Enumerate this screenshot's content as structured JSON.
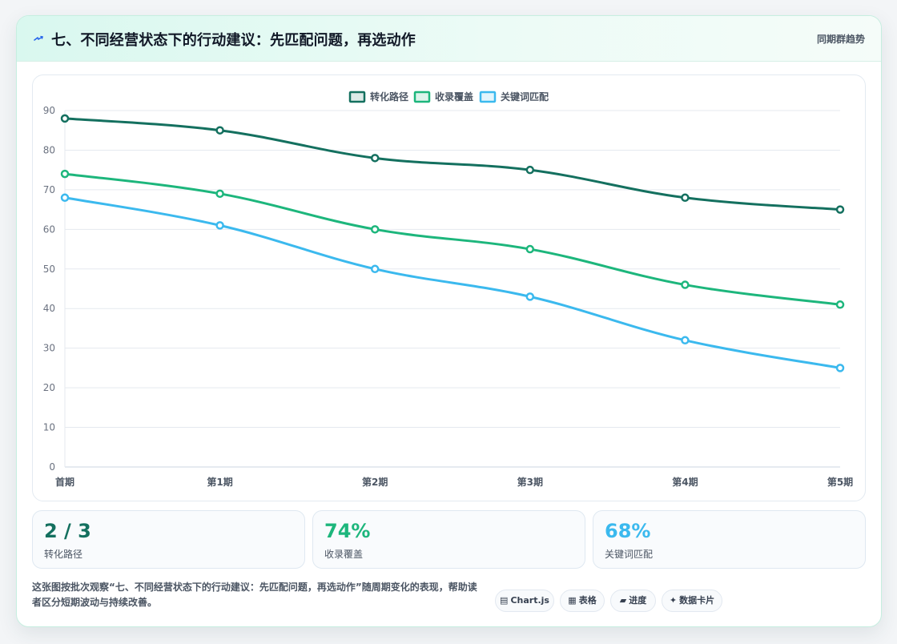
{
  "header": {
    "title": "七、不同经营状态下的行动建议：先匹配问题，再选动作",
    "tag": "同期群趋势"
  },
  "chart_data": {
    "type": "line",
    "categories": [
      "首期",
      "第1期",
      "第2期",
      "第3期",
      "第4期",
      "第5期"
    ],
    "series": [
      {
        "name": "转化路径",
        "color": "#14705f",
        "values": [
          88,
          85,
          78,
          75,
          68,
          65
        ]
      },
      {
        "name": "收录覆盖",
        "color": "#1db67c",
        "values": [
          74,
          69,
          60,
          55,
          46,
          41
        ]
      },
      {
        "name": "关键词匹配",
        "color": "#3bb9ee",
        "values": [
          68,
          61,
          50,
          43,
          32,
          25
        ]
      }
    ],
    "ylim": [
      0,
      90
    ],
    "yticks": [
      0,
      10,
      20,
      30,
      40,
      50,
      60,
      70,
      80,
      90
    ],
    "grid": true,
    "legend": "top-center"
  },
  "stats": [
    {
      "value": "2 / 3",
      "label": "转化路径",
      "color": "#14705f"
    },
    {
      "value": "74%",
      "label": "收录覆盖",
      "color": "#1db67c"
    },
    {
      "value": "68%",
      "label": "关键词匹配",
      "color": "#3bb9ee"
    }
  ],
  "note": "这张图按批次观察“七、不同经营状态下的行动建议：先匹配问题，再选动作”随周期变化的表现，帮助读者区分短期波动与持续改善。",
  "pills": [
    {
      "icon": "chart-icon",
      "label": "Chart.js"
    },
    {
      "icon": "table-icon",
      "label": "表格"
    },
    {
      "icon": "progress-icon",
      "label": "进度"
    },
    {
      "icon": "sparkle-icon",
      "label": "数据卡片"
    }
  ]
}
